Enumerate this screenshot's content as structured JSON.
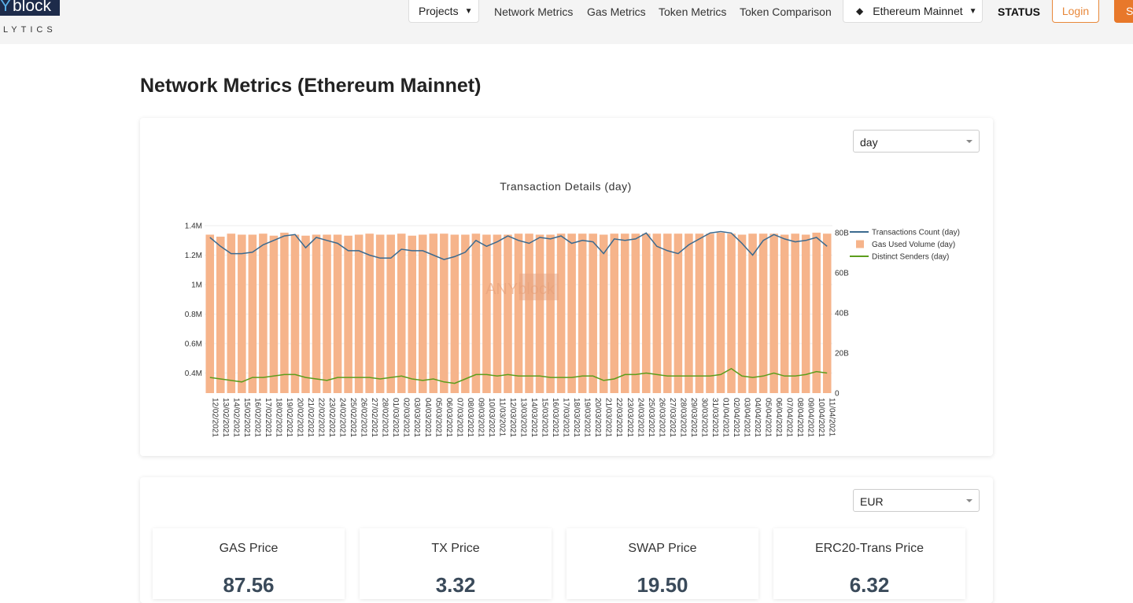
{
  "nav": {
    "logo_y": "Y",
    "logo_block": "block",
    "logo_sub": "LYTICS",
    "items": [
      "Projects",
      "Network Metrics",
      "Gas Metrics",
      "Token Metrics",
      "Token Comparison"
    ],
    "network": "Ethereum Mainnet",
    "status": "STATUS",
    "login": "Login",
    "signup": "Si"
  },
  "page_title": "Network Metrics (Ethereum Mainnet)",
  "period_select": "day",
  "currency_select": "EUR",
  "cards": [
    {
      "title": "GAS Price",
      "value": "87.56"
    },
    {
      "title": "TX Price",
      "value": "3.32"
    },
    {
      "title": "SWAP Price",
      "value": "19.50"
    },
    {
      "title": "ERC20-Trans Price",
      "value": "6.32"
    }
  ],
  "chart_data": {
    "type": "combo",
    "title": "Transaction Details (day)",
    "watermark": "ANYblock",
    "categories": [
      "12/02/2021",
      "13/02/2021",
      "14/02/2021",
      "15/02/2021",
      "16/02/2021",
      "17/02/2021",
      "18/02/2021",
      "19/02/2021",
      "20/02/2021",
      "21/02/2021",
      "22/02/2021",
      "23/02/2021",
      "24/02/2021",
      "25/02/2021",
      "26/02/2021",
      "27/02/2021",
      "28/02/2021",
      "01/03/2021",
      "02/03/2021",
      "03/03/2021",
      "04/03/2021",
      "05/03/2021",
      "06/03/2021",
      "07/03/2021",
      "08/03/2021",
      "09/03/2021",
      "10/03/2021",
      "11/03/2021",
      "12/03/2021",
      "13/03/2021",
      "14/03/2021",
      "15/03/2021",
      "16/03/2021",
      "17/03/2021",
      "18/03/2021",
      "19/03/2021",
      "20/03/2021",
      "21/03/2021",
      "22/03/2021",
      "23/03/2021",
      "24/03/2021",
      "25/03/2021",
      "26/03/2021",
      "27/03/2021",
      "28/03/2021",
      "29/03/2021",
      "30/03/2021",
      "31/03/2021",
      "01/04/2021",
      "02/04/2021",
      "03/04/2021",
      "04/04/2021",
      "05/04/2021",
      "06/04/2021",
      "07/04/2021",
      "08/04/2021",
      "09/04/2021",
      "10/04/2021",
      "11/04/2021"
    ],
    "series": [
      {
        "name": "Transactions Count (day)",
        "kind": "line",
        "color": "#3b6a8f",
        "values": [
          1320000,
          1260000,
          1210000,
          1210000,
          1220000,
          1270000,
          1300000,
          1330000,
          1340000,
          1250000,
          1320000,
          1300000,
          1280000,
          1230000,
          1230000,
          1200000,
          1180000,
          1180000,
          1240000,
          1230000,
          1230000,
          1200000,
          1170000,
          1190000,
          1220000,
          1300000,
          1260000,
          1290000,
          1330000,
          1300000,
          1280000,
          1320000,
          1310000,
          1330000,
          1280000,
          1300000,
          1290000,
          1210000,
          1310000,
          1300000,
          1310000,
          1350000,
          1260000,
          1230000,
          1210000,
          1270000,
          1310000,
          1350000,
          1360000,
          1350000,
          1280000,
          1200000,
          1300000,
          1340000,
          1310000,
          1290000,
          1300000,
          1320000,
          1260000
        ]
      },
      {
        "name": "Gas Used Volume (day)",
        "kind": "bar",
        "axis": "y2",
        "color": "#f6b48b",
        "values": [
          79000000000,
          78000000000,
          79500000000,
          79000000000,
          79000000000,
          79500000000,
          78500000000,
          80000000000,
          79000000000,
          78500000000,
          79000000000,
          79000000000,
          79000000000,
          78500000000,
          79000000000,
          79500000000,
          79000000000,
          79000000000,
          79500000000,
          78500000000,
          79000000000,
          79500000000,
          79500000000,
          79000000000,
          79000000000,
          79500000000,
          79000000000,
          79000000000,
          79000000000,
          79500000000,
          79500000000,
          79000000000,
          79000000000,
          79500000000,
          79500000000,
          79500000000,
          79500000000,
          79000000000,
          79500000000,
          79500000000,
          79500000000,
          79500000000,
          79500000000,
          79500000000,
          79500000000,
          79500000000,
          79500000000,
          79500000000,
          80000000000,
          79500000000,
          79000000000,
          79500000000,
          79500000000,
          79500000000,
          79000000000,
          79500000000,
          79000000000,
          80000000000,
          79500000000
        ]
      },
      {
        "name": "Distinct Senders (day)",
        "kind": "line",
        "color": "#5c9d1c",
        "values": [
          370000,
          360000,
          350000,
          340000,
          370000,
          370000,
          380000,
          390000,
          390000,
          370000,
          360000,
          350000,
          370000,
          370000,
          370000,
          370000,
          360000,
          370000,
          380000,
          360000,
          350000,
          360000,
          340000,
          330000,
          360000,
          390000,
          390000,
          380000,
          390000,
          380000,
          380000,
          380000,
          370000,
          370000,
          370000,
          380000,
          380000,
          350000,
          360000,
          390000,
          390000,
          400000,
          390000,
          380000,
          380000,
          380000,
          380000,
          380000,
          390000,
          430000,
          380000,
          370000,
          380000,
          400000,
          380000,
          380000,
          390000,
          410000,
          400000
        ]
      }
    ],
    "ylim": [
      264000,
      1400000
    ],
    "yticks": [
      {
        "value": 400000,
        "label": "0.4M"
      },
      {
        "value": 600000,
        "label": "0.6M"
      },
      {
        "value": 800000,
        "label": "0.8M"
      },
      {
        "value": 1000000,
        "label": "1M"
      },
      {
        "value": 1200000,
        "label": "1.2M"
      },
      {
        "value": 1400000,
        "label": "1.4M"
      }
    ],
    "y2lim": [
      0,
      83500000000
    ],
    "y2ticks": [
      0,
      {
        "value": 20000000000,
        "label": "20B"
      },
      {
        "value": 40000000000,
        "label": "40B"
      },
      {
        "value": 60000000000,
        "label": "60B"
      },
      {
        "value": 80000000000,
        "label": "80B"
      }
    ],
    "legend": "top-right"
  }
}
